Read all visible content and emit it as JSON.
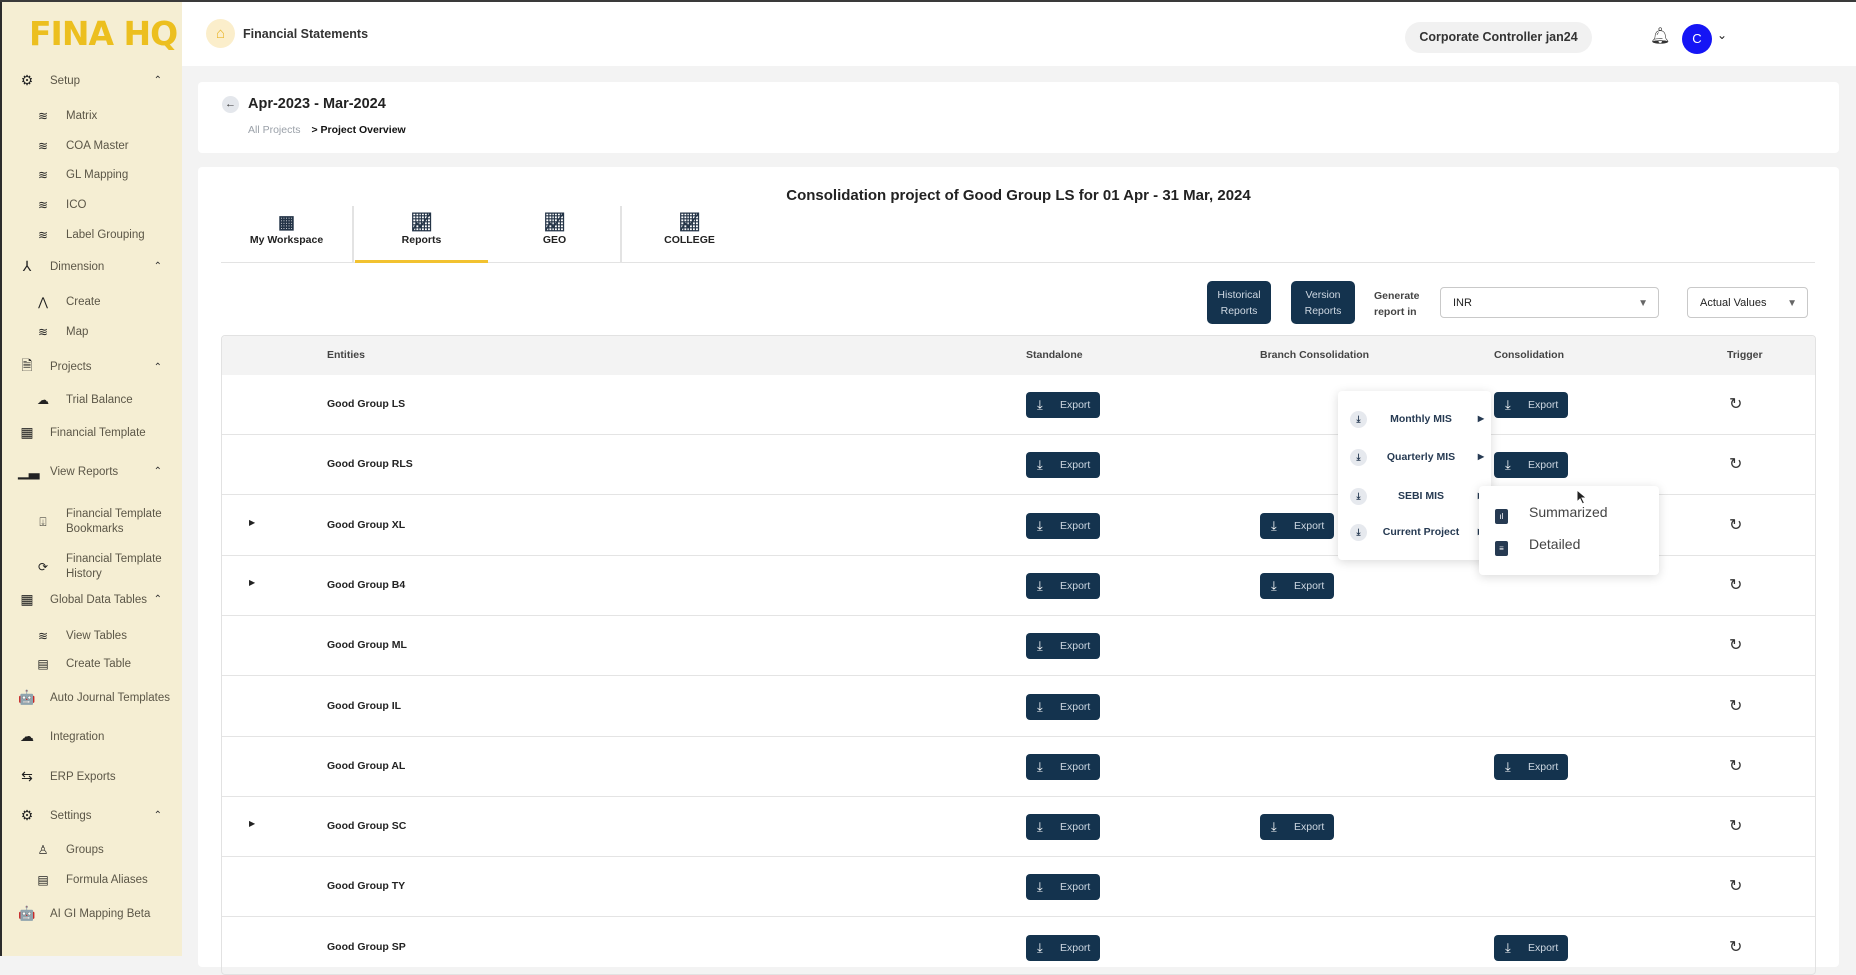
{
  "brand": "FINA HQ",
  "sidebar": {
    "items": [
      {
        "label": "Setup",
        "icon": "gear-icon",
        "glyph": "⚙",
        "sub": false,
        "chev": true
      },
      {
        "label": "Matrix",
        "icon": "layers-icon",
        "glyph": "≋",
        "sub": true
      },
      {
        "label": "COA Master",
        "icon": "layers-icon",
        "glyph": "≋",
        "sub": true
      },
      {
        "label": "GL Mapping",
        "icon": "layers-icon",
        "glyph": "≋",
        "sub": true
      },
      {
        "label": "ICO",
        "icon": "layers-icon",
        "glyph": "≋",
        "sub": true
      },
      {
        "label": "Label Grouping",
        "icon": "layers-icon",
        "glyph": "≋",
        "sub": true
      },
      {
        "label": "Dimension",
        "icon": "hierarchy-icon",
        "glyph": "⅄",
        "sub": false,
        "chev": true
      },
      {
        "label": "Create",
        "icon": "nodes-icon",
        "glyph": "⋀",
        "sub": true
      },
      {
        "label": "Map",
        "icon": "layers-icon",
        "glyph": "≋",
        "sub": true
      },
      {
        "label": "Projects",
        "icon": "document-icon",
        "glyph": "🗎",
        "sub": false,
        "chev": true
      },
      {
        "label": "Trial Balance",
        "icon": "cloud-download-icon",
        "glyph": "☁",
        "sub": true
      },
      {
        "label": "Financial Template",
        "icon": "spreadsheet-icon",
        "glyph": "▦",
        "sub": false
      },
      {
        "label": "View Reports",
        "icon": "bar-chart-icon",
        "glyph": "▁▃",
        "sub": false,
        "chev": true
      },
      {
        "label": "Financial Template Bookmarks",
        "icon": "bookmark-download-icon",
        "glyph": "⍗",
        "sub": true
      },
      {
        "label": "Financial Template History",
        "icon": "repeat-icon",
        "glyph": "⟳",
        "sub": true
      },
      {
        "label": "Global Data Tables",
        "icon": "table-icon",
        "glyph": "▦",
        "sub": false,
        "chev": true
      },
      {
        "label": "View Tables",
        "icon": "layers-icon",
        "glyph": "≋",
        "sub": true
      },
      {
        "label": "Create Table",
        "icon": "spreadsheet-icon",
        "glyph": "▤",
        "sub": true
      },
      {
        "label": "Auto Journal Templates",
        "icon": "robot-icon",
        "glyph": "🤖",
        "sub": false
      },
      {
        "label": "Integration",
        "icon": "cloud-icon",
        "glyph": "☁",
        "sub": false
      },
      {
        "label": "ERP Exports",
        "icon": "swap-icon",
        "glyph": "⇆",
        "sub": false
      },
      {
        "label": "Settings",
        "icon": "gear-icon",
        "glyph": "⚙",
        "sub": false,
        "chev": true
      },
      {
        "label": "Groups",
        "icon": "user-check-icon",
        "glyph": "♙",
        "sub": true
      },
      {
        "label": "Formula Aliases",
        "icon": "spreadsheet-icon",
        "glyph": "▤",
        "sub": true
      },
      {
        "label": "AI GI Mapping Beta",
        "icon": "robot-icon",
        "glyph": "🤖",
        "sub": false
      }
    ]
  },
  "header": {
    "title": "Financial Statements",
    "role": "Corporate Controller jan24",
    "avatar": "C"
  },
  "project": {
    "period": "Apr-2023 - Mar-2024",
    "breadcrumb_root": "All Projects",
    "breadcrumb_current": "> Project Overview"
  },
  "main": {
    "title": "Consolidation project of Good Group LS for 01 Apr - 31 Mar, 2024",
    "tabs": [
      {
        "label": "My Workspace",
        "icon": "grid-icon"
      },
      {
        "label": "Reports",
        "icon": "line-chart-icon",
        "active": true
      },
      {
        "label": "GEO",
        "icon": "line-chart-icon"
      },
      {
        "label": "COLLEGE",
        "icon": "line-chart-icon"
      }
    ],
    "historical_label": "Historical Reports",
    "version_label": "Version Reports",
    "generate_label": "Generate report in",
    "currency": "INR",
    "value_type": "Actual Values"
  },
  "table": {
    "columns": [
      "Entities",
      "Standalone",
      "Branch Consolidation",
      "Consolidation",
      "Trigger"
    ],
    "export_label": "Export",
    "rows": [
      {
        "entity": "Good Group LS",
        "expandable": false,
        "standalone": true,
        "branch": false,
        "consolidation": true
      },
      {
        "entity": "Good Group RLS",
        "expandable": false,
        "standalone": true,
        "branch": false,
        "consolidation": true
      },
      {
        "entity": "Good Group XL",
        "expandable": true,
        "standalone": true,
        "branch": true,
        "consolidation": false
      },
      {
        "entity": "Good Group B4",
        "expandable": true,
        "standalone": true,
        "branch": true,
        "consolidation": false
      },
      {
        "entity": "Good Group ML",
        "expandable": false,
        "standalone": true,
        "branch": false,
        "consolidation": false
      },
      {
        "entity": "Good Group IL",
        "expandable": false,
        "standalone": true,
        "branch": false,
        "consolidation": false
      },
      {
        "entity": "Good Group AL",
        "expandable": false,
        "standalone": true,
        "branch": false,
        "consolidation": true
      },
      {
        "entity": "Good Group SC",
        "expandable": true,
        "standalone": true,
        "branch": true,
        "consolidation": false
      },
      {
        "entity": "Good Group TY",
        "expandable": false,
        "standalone": true,
        "branch": false,
        "consolidation": false
      },
      {
        "entity": "Good Group SP",
        "expandable": false,
        "standalone": true,
        "branch": false,
        "consolidation": true
      }
    ]
  },
  "export_menu": {
    "items": [
      "Monthly MIS",
      "Quarterly MIS",
      "SEBI MIS",
      "Current Project"
    ]
  },
  "submenu": {
    "items": [
      "Summarized",
      "Detailed"
    ]
  },
  "colors": {
    "sidebar": "#f5eed3",
    "brand": "#ecbf1f",
    "button": "#14334e",
    "tab_active": "#f2c230",
    "avatar": "#1515f5"
  }
}
